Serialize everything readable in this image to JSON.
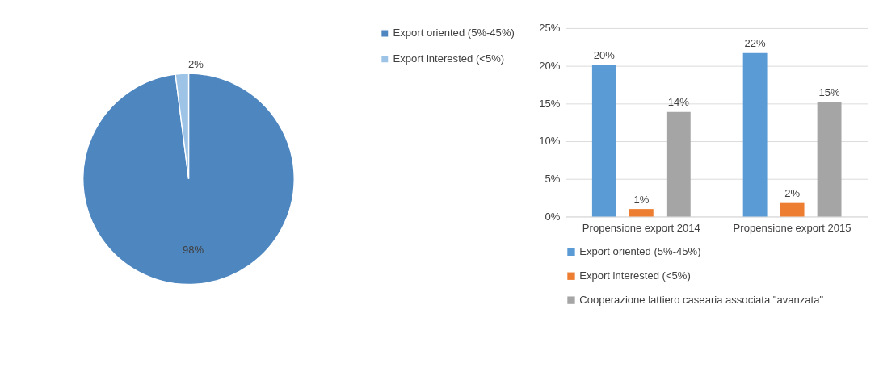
{
  "chart_data": [
    {
      "type": "pie",
      "categories": [
        "Export oriented (5%-45%)",
        "Export interested (<5%)"
      ],
      "values": [
        98,
        2
      ],
      "colors": [
        "#4e86c0",
        "#9dc3e6"
      ],
      "value_labels": [
        "98%",
        "2%"
      ],
      "legend": "right"
    },
    {
      "type": "bar",
      "categories": [
        "Propensione export 2014",
        "Propensione export 2015"
      ],
      "ylim": [
        0,
        25
      ],
      "yticks": [
        {
          "value": 0,
          "label": "0%"
        },
        {
          "value": 5,
          "label": "5%"
        },
        {
          "value": 10,
          "label": "10%"
        },
        {
          "value": 15,
          "label": "15%"
        },
        {
          "value": 20,
          "label": "20%"
        },
        {
          "value": 25,
          "label": "25%"
        }
      ],
      "grid": "y",
      "legend": "bottom",
      "series": [
        {
          "name": "Export oriented (5%-45%)",
          "color": "#5b9bd5",
          "values": [
            20.1,
            21.7
          ],
          "value_labels": [
            "20%",
            "22%"
          ]
        },
        {
          "name": "Export interested (<5%)",
          "color": "#ed7d31",
          "values": [
            1.0,
            1.8
          ],
          "value_labels": [
            "1%",
            "2%"
          ]
        },
        {
          "name": "Cooperazione lattiero casearia associata \"avanzata\"",
          "color": "#a5a5a5",
          "values": [
            13.9,
            15.2
          ],
          "value_labels": [
            "14%",
            "15%"
          ]
        }
      ]
    }
  ]
}
